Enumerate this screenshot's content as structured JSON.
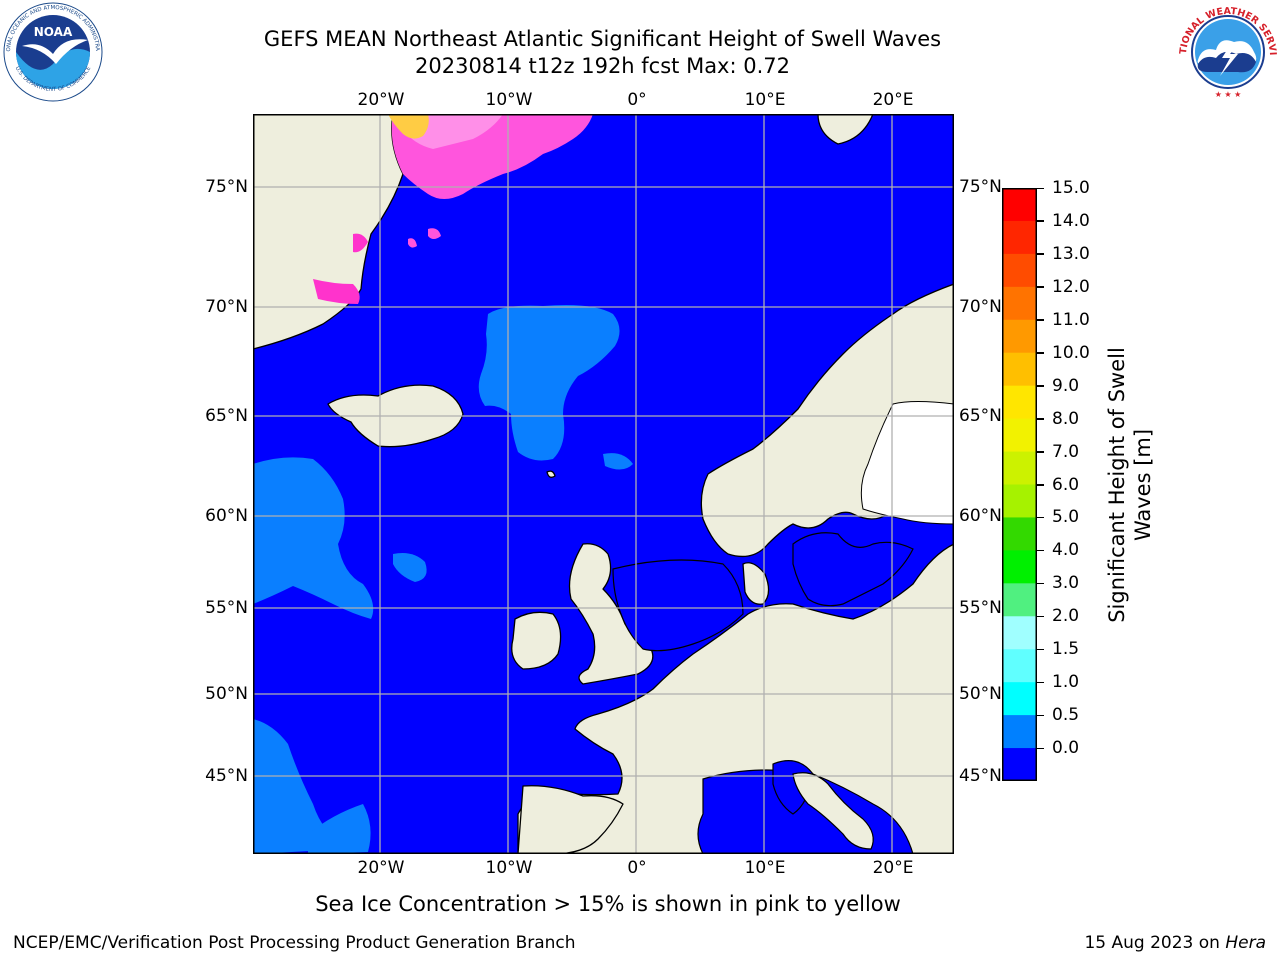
{
  "title": {
    "line1": "GEFS MEAN Northeast Atlantic Significant Height of Swell Waves",
    "line2": "20230814 t12z 192h fcst   Max: 0.72"
  },
  "logos": {
    "left": "noaa-logo",
    "right": "nws-logo"
  },
  "map": {
    "lon_range": [
      -30,
      25
    ],
    "lat_range": [
      41,
      78
    ],
    "lon_ticks": [
      "20°W",
      "10°W",
      "0°",
      "10°E",
      "20°E"
    ],
    "lon_values": [
      -20,
      -10,
      0,
      10,
      20
    ],
    "lat_ticks": [
      "75°N",
      "70°N",
      "65°N",
      "60°N",
      "55°N",
      "50°N",
      "45°N"
    ],
    "lat_values": [
      75,
      70,
      65,
      60,
      55,
      50,
      45
    ],
    "projection": "polar-stereographic",
    "grid": true,
    "colors": {
      "ocean_low": "#0000ff",
      "ocean_mid": "#007fff",
      "land": "#eeeedd",
      "ice_pink": "#ff55dd",
      "ice_magenta": "#ff33cc",
      "ice_yellow": "#ffcc44",
      "coast": "#000000",
      "grid": "#b0b0b0"
    }
  },
  "colorbar": {
    "title": "Significant Height of Swell Waves [m]",
    "tick_labels": [
      "15.0",
      "14.0",
      "13.0",
      "12.0",
      "11.0",
      "10.0",
      "9.0",
      "8.0",
      "7.0",
      "6.0",
      "5.0",
      "4.0",
      "3.0",
      "2.0",
      "1.5",
      "1.0",
      "0.5",
      "0.0"
    ],
    "bands": [
      "#ff0000",
      "#ff2600",
      "#ff4c00",
      "#ff7300",
      "#ff9900",
      "#ffbf00",
      "#ffe600",
      "#f2f200",
      "#ccf200",
      "#a6f200",
      "#33d900",
      "#00f000",
      "#50f080",
      "#a0ffff",
      "#60ffff",
      "#00ffff",
      "#0080ff",
      "#0000ff"
    ]
  },
  "note": "Sea Ice Concentration > 15% is shown in pink to yellow",
  "footer": {
    "left": "NCEP/EMC/Verification Post Processing Product Generation Branch",
    "right_prefix": "15 Aug 2023 on ",
    "right_host": "Hera"
  }
}
